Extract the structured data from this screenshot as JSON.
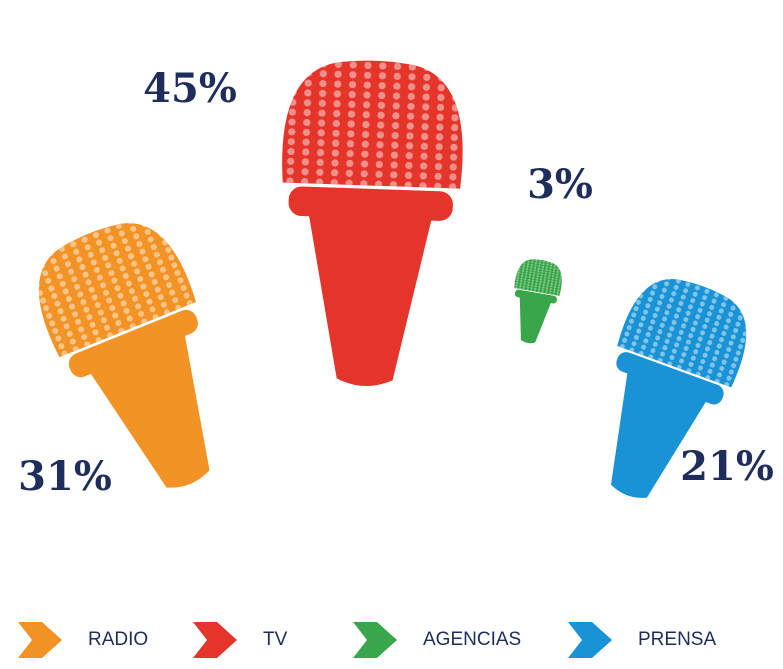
{
  "chart_data": {
    "type": "pictogram",
    "categories": [
      "RADIO",
      "TV",
      "AGENCIAS",
      "PRENSA"
    ],
    "values": [
      31,
      45,
      3,
      21
    ],
    "value_labels": [
      "31%",
      "45%",
      "3%",
      "21%"
    ],
    "colors": [
      "#f39325",
      "#e5352a",
      "#3aa64a",
      "#1a93d6"
    ]
  }
}
